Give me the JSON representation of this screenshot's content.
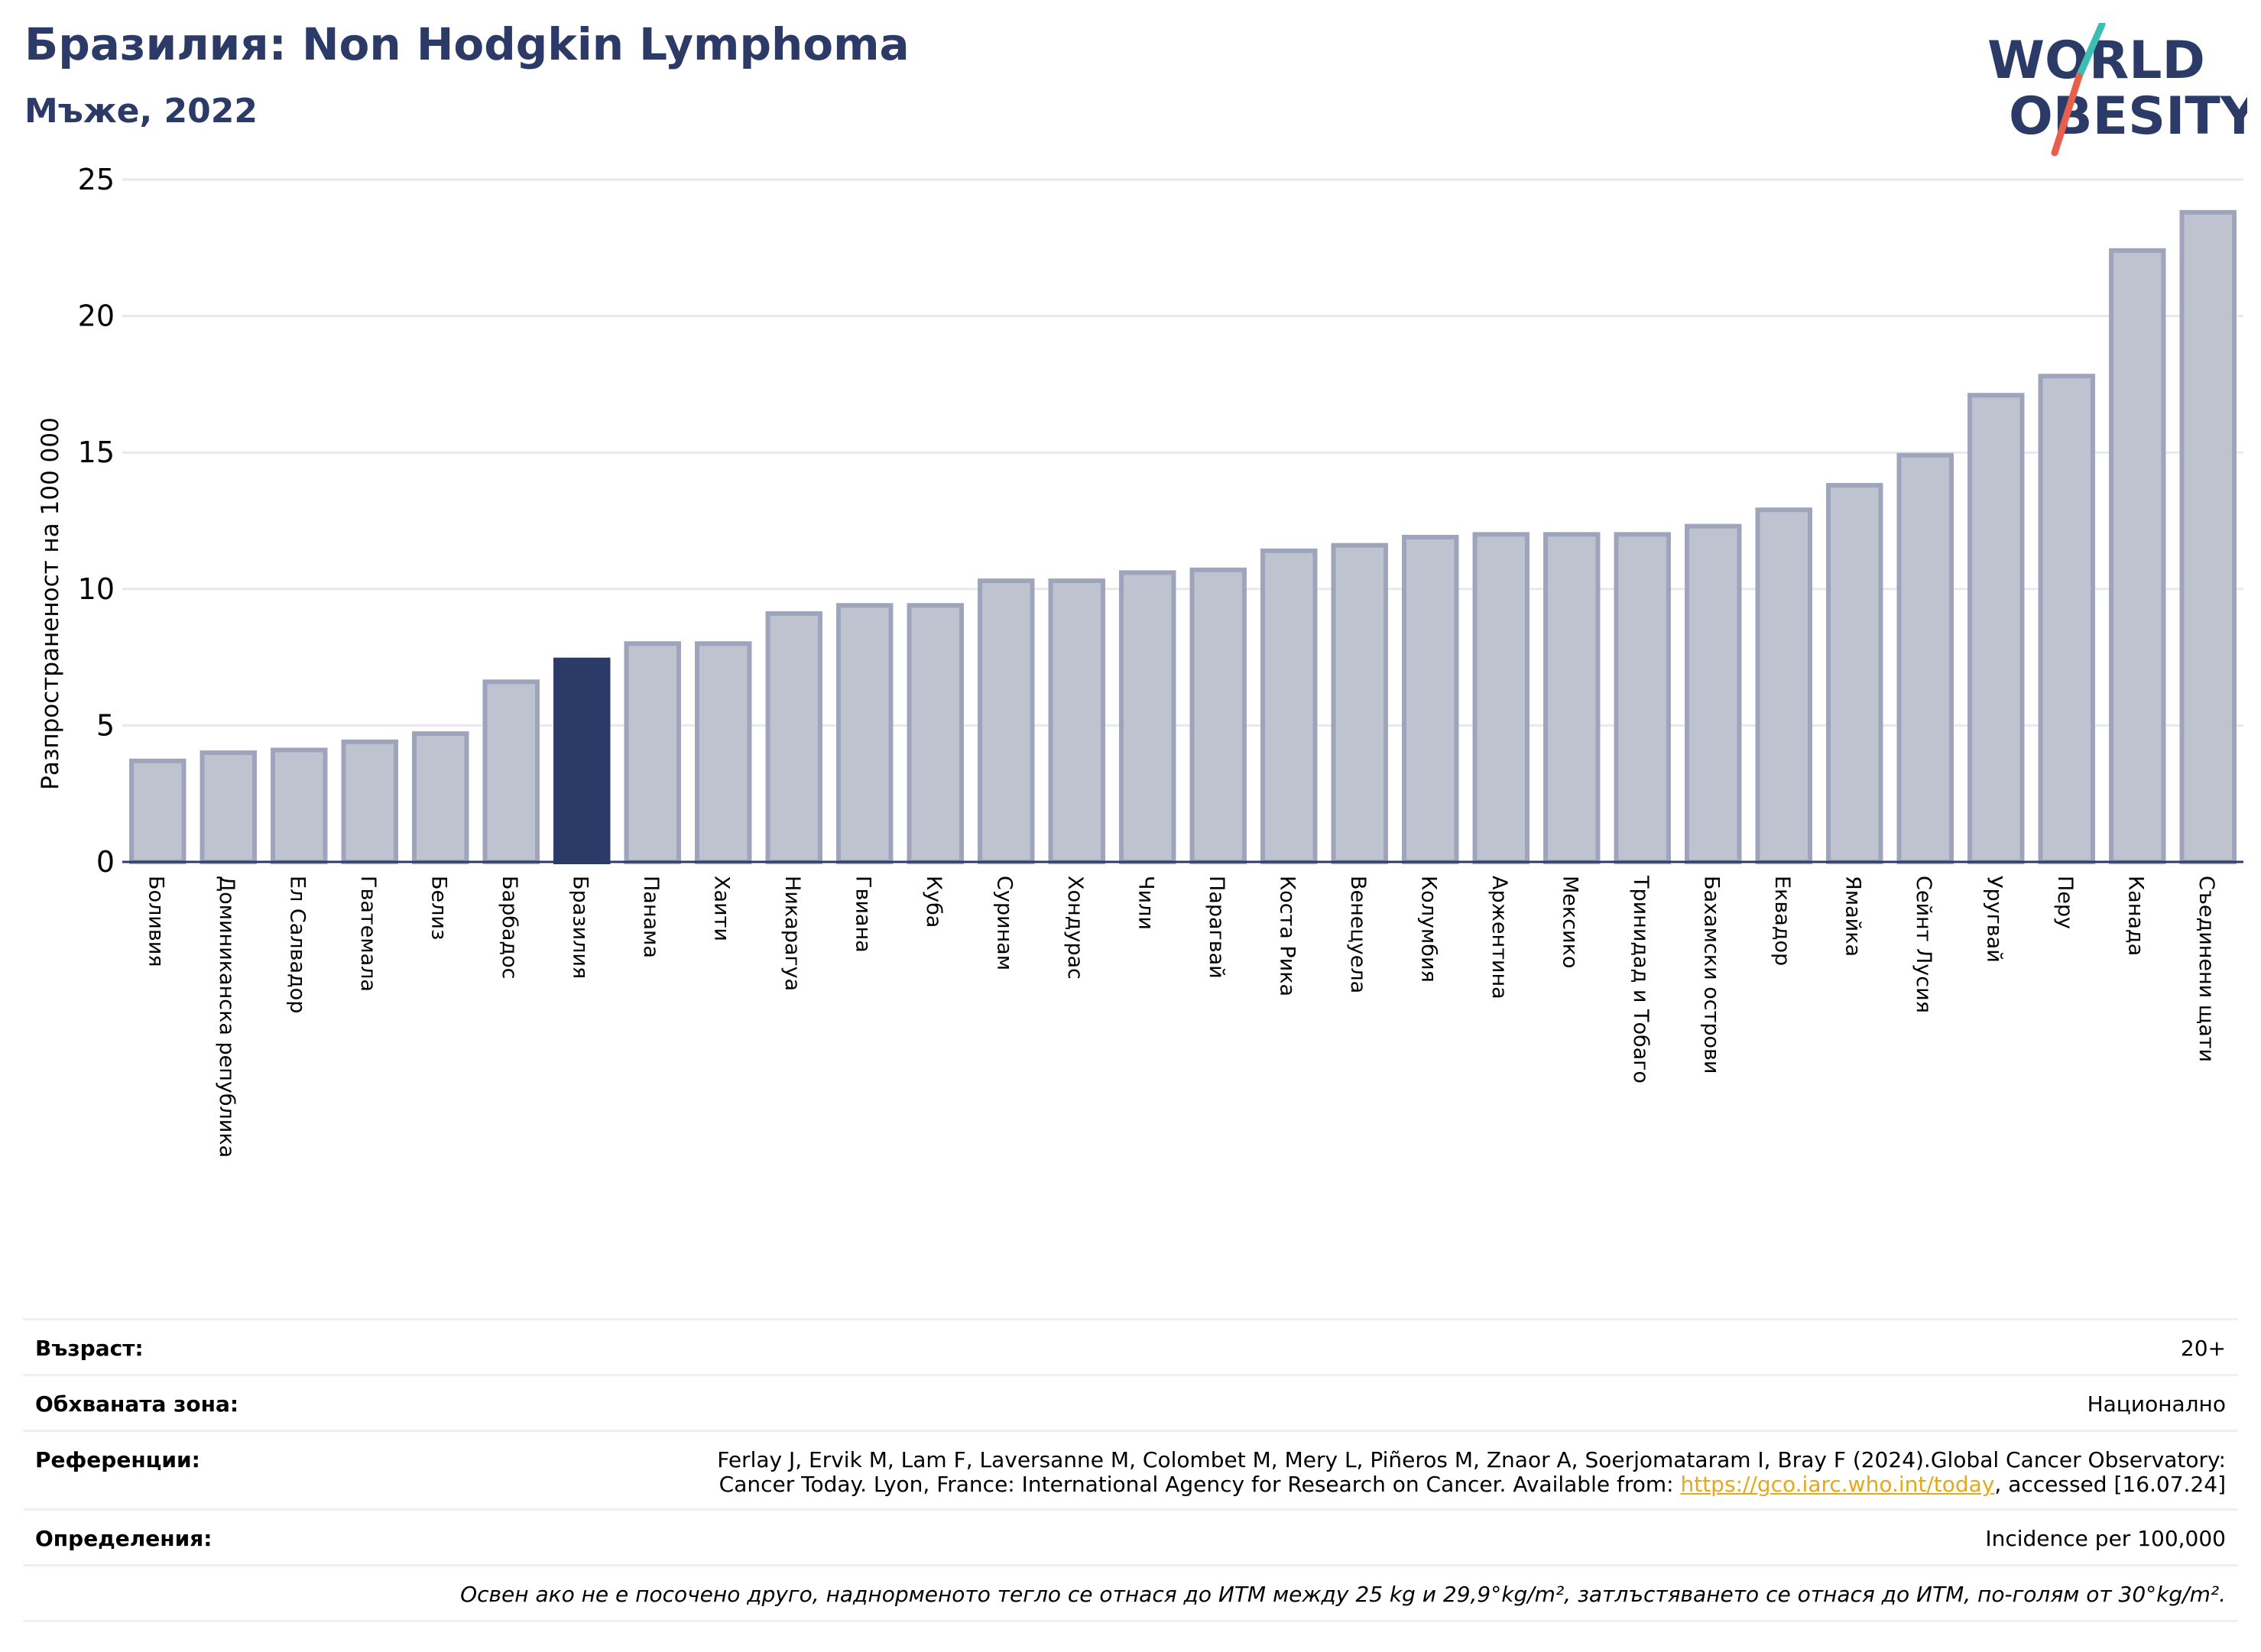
{
  "header": {
    "title": "Бразилия: Non Hodgkin Lymphoma",
    "subtitle": "Мъже, 2022"
  },
  "logo": {
    "line1": "WORLD",
    "line2": "OBESITY",
    "colors": {
      "text": "#2b3a67",
      "slash_top": "#3bbfb3",
      "slash_bottom": "#e8604c"
    }
  },
  "colors": {
    "bar": "#bfc3d0",
    "bar_edge": "#9ea4bb",
    "highlight": "#2b3a67",
    "grid": "#e8e9ee",
    "axis": "#2b3a67"
  },
  "chart_data": {
    "type": "bar",
    "title": "Бразилия: Non Hodgkin Lymphoma",
    "subtitle": "Мъже, 2022",
    "ylabel": "Разпространеност  на 100 000",
    "xlabel": "",
    "ylim": [
      0,
      25
    ],
    "yticks": [
      0,
      5,
      10,
      15,
      20,
      25
    ],
    "grid": true,
    "highlight": "Бразилия",
    "categories": [
      "Боливия",
      "Доминиканска република",
      "Ел Салвадор",
      "Гватемала",
      "Белиз",
      "Барбадос",
      "Бразилия",
      "Панама",
      "Хаити",
      "Никарагуа",
      "Гвиана",
      "Куба",
      "Суринам",
      "Хондурас",
      "Чили",
      "Парагвай",
      "Коста Рика",
      "Венецуела",
      "Колумбия",
      "Аржентина",
      "Мексико",
      "Тринидад и Тобаго",
      "Бахамски острови",
      "Еквадор",
      "Ямайка",
      "Сейнт Лусия",
      "Уругвай",
      "Перу",
      "Канада",
      "Съединени щати"
    ],
    "values": [
      3.7,
      4.0,
      4.1,
      4.4,
      4.7,
      6.6,
      7.4,
      8.0,
      8.0,
      9.1,
      9.4,
      9.4,
      10.3,
      10.3,
      10.6,
      10.7,
      11.4,
      11.6,
      11.9,
      12.0,
      12.0,
      12.0,
      12.3,
      12.9,
      13.8,
      14.9,
      17.1,
      17.8,
      22.4,
      23.8
    ]
  },
  "info": {
    "age_label": "Възраст:",
    "age_value": "20+",
    "area_label": "Обхваната зона:",
    "area_value": "Национално",
    "ref_label": "Референции:",
    "ref_line1": "Ferlay J, Ervik M, Lam F, Laversanne M, Colombet M, Mery L, Piñeros M, Znaor A, Soerjomataram I, Bray F (2024).Global Cancer Observatory:",
    "ref_line2_pre": "Cancer Today. Lyon, France: International Agency for Research on Cancer. Available from: ",
    "ref_link": "https://gco.iarc.who.int/today",
    "ref_line2_post": ", accessed [16.07.24]",
    "def_label": "Определения:",
    "def_value": "Incidence per 100,000",
    "note": "Освен ако не е посочено друго, наднорменото тегло се отнася до ИТМ между 25 kg и 29,9°kg/m², затлъстяването се отнася до ИТМ, по-голям от 30°kg/m²."
  }
}
